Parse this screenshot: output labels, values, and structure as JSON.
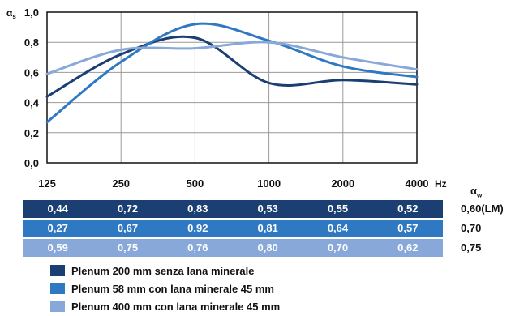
{
  "chart_data": {
    "type": "line",
    "ylabel": "αs",
    "xunit": "Hz",
    "categories": [
      "125",
      "250",
      "500",
      "1000",
      "2000",
      "4000"
    ],
    "yticks": [
      "0,0",
      "0,2",
      "0,4",
      "0,6",
      "0,8",
      "1,0"
    ],
    "ylim": [
      0,
      1
    ],
    "grid": true,
    "series": [
      {
        "name": "Plenum 200 mm senza lana minerale",
        "color": "#1b3f73",
        "values": [
          0.44,
          0.72,
          0.83,
          0.53,
          0.55,
          0.52
        ],
        "labels": [
          "0,44",
          "0,72",
          "0,83",
          "0,53",
          "0,55",
          "0,52"
        ],
        "rating": "0,60(LM)"
      },
      {
        "name": "Plenum 58 mm con lana minerale 45 mm",
        "color": "#2f79c3",
        "values": [
          0.27,
          0.67,
          0.92,
          0.81,
          0.64,
          0.57
        ],
        "labels": [
          "0,27",
          "0,67",
          "0,92",
          "0,81",
          "0,64",
          "0,57"
        ],
        "rating": "0,70"
      },
      {
        "name": "Plenum 400 mm con lana minerale 45 mm",
        "color": "#87a8d9",
        "values": [
          0.59,
          0.75,
          0.76,
          0.8,
          0.7,
          0.62
        ],
        "labels": [
          "0,59",
          "0,75",
          "0,76",
          "0,80",
          "0,70",
          "0,62"
        ],
        "rating": "0,75"
      }
    ]
  },
  "alpha_w": {
    "symbol": "α",
    "sub": "w"
  }
}
